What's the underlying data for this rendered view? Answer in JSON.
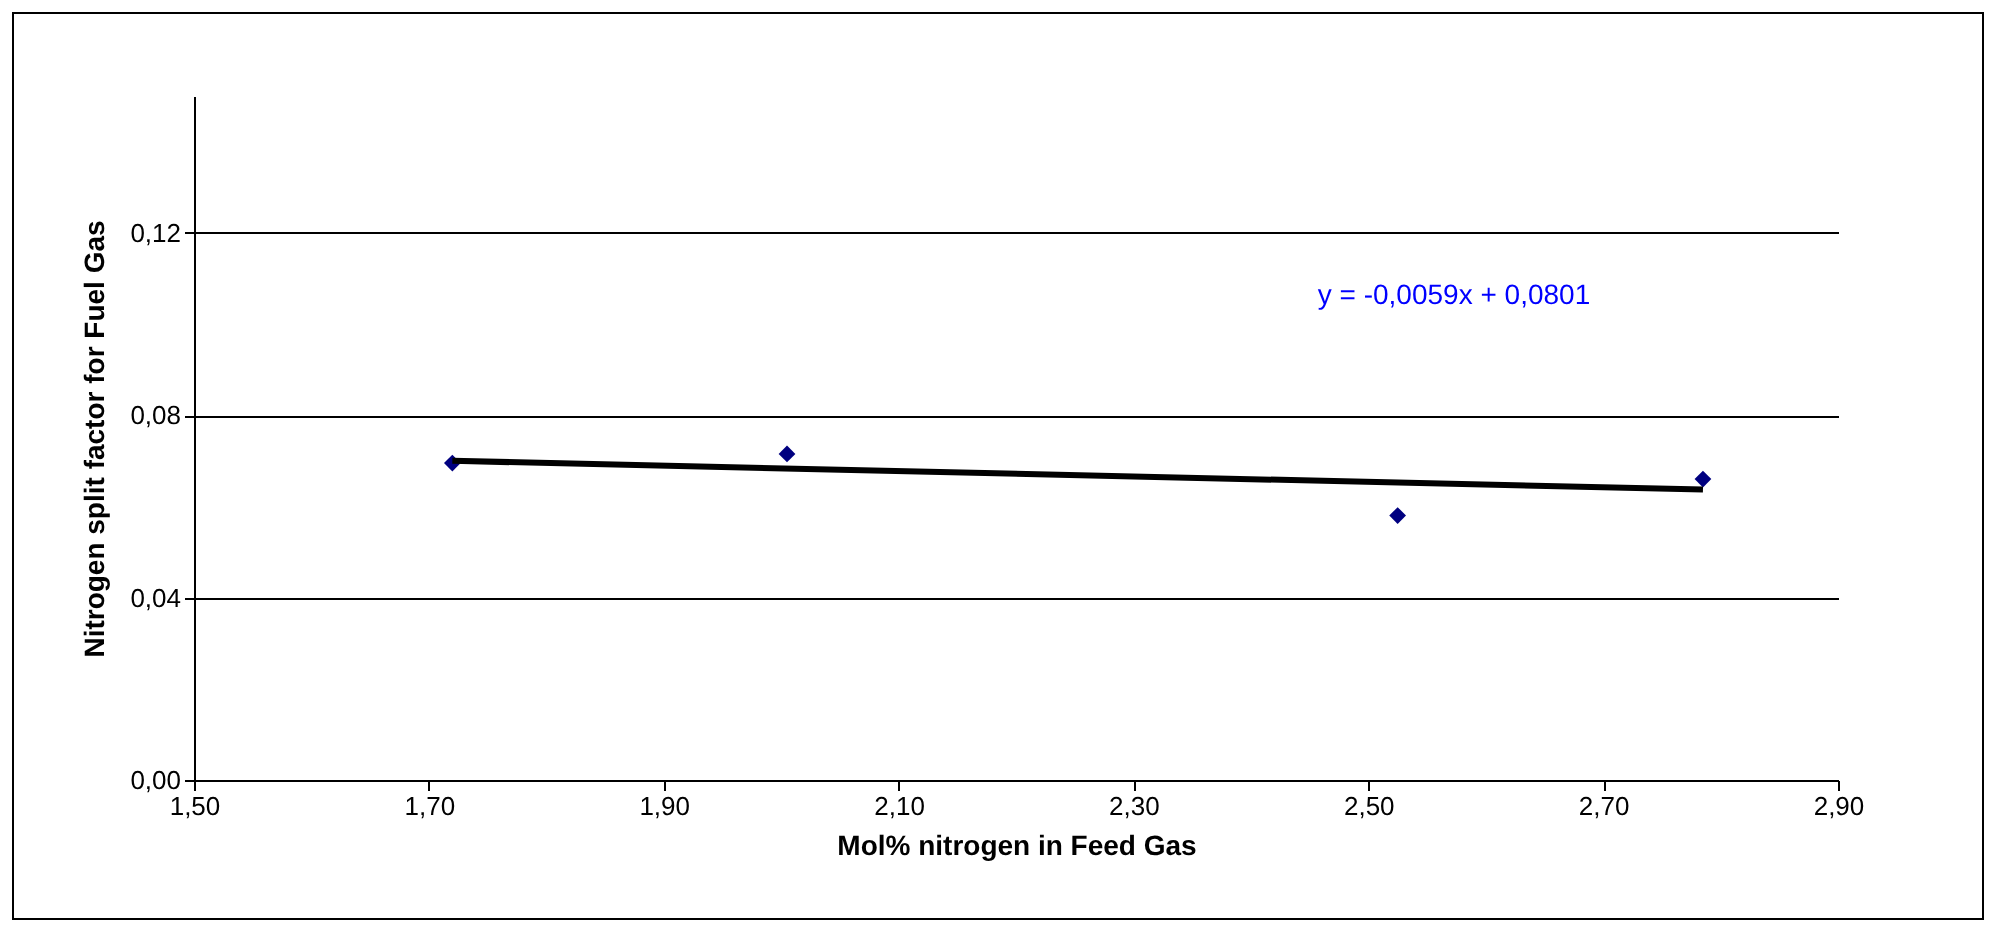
{
  "chart_data": {
    "type": "scatter",
    "xlabel": "Mol% nitrogen in Feed Gas",
    "ylabel": "Nitrogen split factor for Fuel Gas",
    "series": [
      {
        "color": "#000080",
        "marker": "diamond",
        "x": [
          1.72,
          2.005,
          2.525,
          2.785
        ],
        "values": [
          0.0695,
          0.0715,
          0.058,
          0.066
        ]
      },
      {
        "type": "line",
        "color": "#000000",
        "x": [
          1.72,
          2.785
        ],
        "values": [
          0.07,
          0.0637
        ]
      }
    ],
    "xlim": [
      1.5,
      2.9
    ],
    "xticks": [
      {
        "value": 1.5,
        "label": "1,50"
      },
      {
        "value": 1.7,
        "label": "1,70"
      },
      {
        "value": 1.9,
        "label": "1,90"
      },
      {
        "value": 2.1,
        "label": "2,10"
      },
      {
        "value": 2.3,
        "label": "2,30"
      },
      {
        "value": 2.5,
        "label": "2,50"
      },
      {
        "value": 2.7,
        "label": "2,70"
      },
      {
        "value": 2.9,
        "label": "2,90"
      }
    ],
    "ylim": [
      0,
      0.15
    ],
    "yticks": [
      {
        "value": 0,
        "label": "0,00"
      },
      {
        "value": 0.04,
        "label": "0,04"
      },
      {
        "value": 0.08,
        "label": "0,08"
      },
      {
        "value": 0.12,
        "label": "0,12"
      }
    ],
    "grid": "y",
    "annotations": [
      "y = -0,0059x + 0,0801"
    ]
  }
}
